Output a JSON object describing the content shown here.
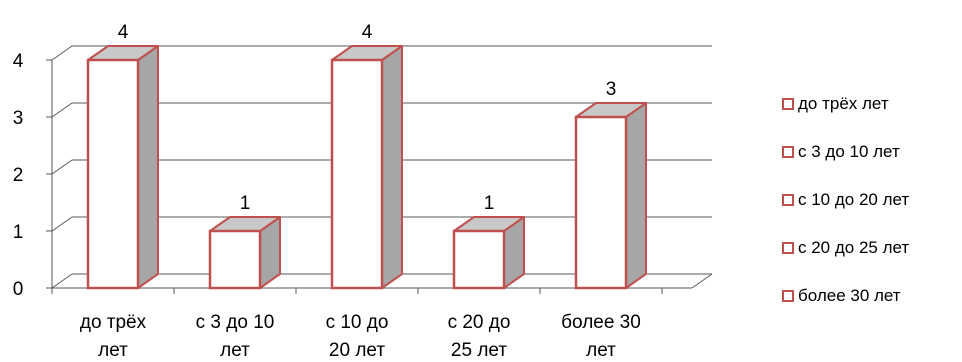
{
  "colors": {
    "bar_face": "#ffffff",
    "bar_border": "#c0504d",
    "bar_top": "#c8c8c8",
    "bar_side": "#a6a6a6",
    "grid": "#595959",
    "axis": "#595959"
  },
  "chart_data": {
    "type": "bar",
    "categories": [
      "до трёх лет",
      "с 3 до 10 лет",
      "с 10 до 20 лет",
      "с 20 до 25 лет",
      "более 30 лет"
    ],
    "category_lines": [
      [
        "до трёх",
        "лет"
      ],
      [
        "с 3 до 10",
        "лет"
      ],
      [
        "с 10 до",
        "20 лет"
      ],
      [
        "с 20 до",
        "25 лет"
      ],
      [
        "более 30",
        "лет"
      ]
    ],
    "values": [
      4,
      1,
      4,
      1,
      3
    ],
    "data_labels": [
      "4",
      "1",
      "4",
      "1",
      "3"
    ],
    "ylim": [
      0,
      4
    ],
    "yticks": [
      "0",
      "1",
      "2",
      "3",
      "4"
    ],
    "grid": true,
    "three_d": true,
    "legend_position": "right",
    "legend": [
      "до трёх лет",
      "с 3 до 10 лет",
      "с 10 до 20 лет",
      "с 20 до 25 лет",
      "более 30 лет"
    ]
  }
}
